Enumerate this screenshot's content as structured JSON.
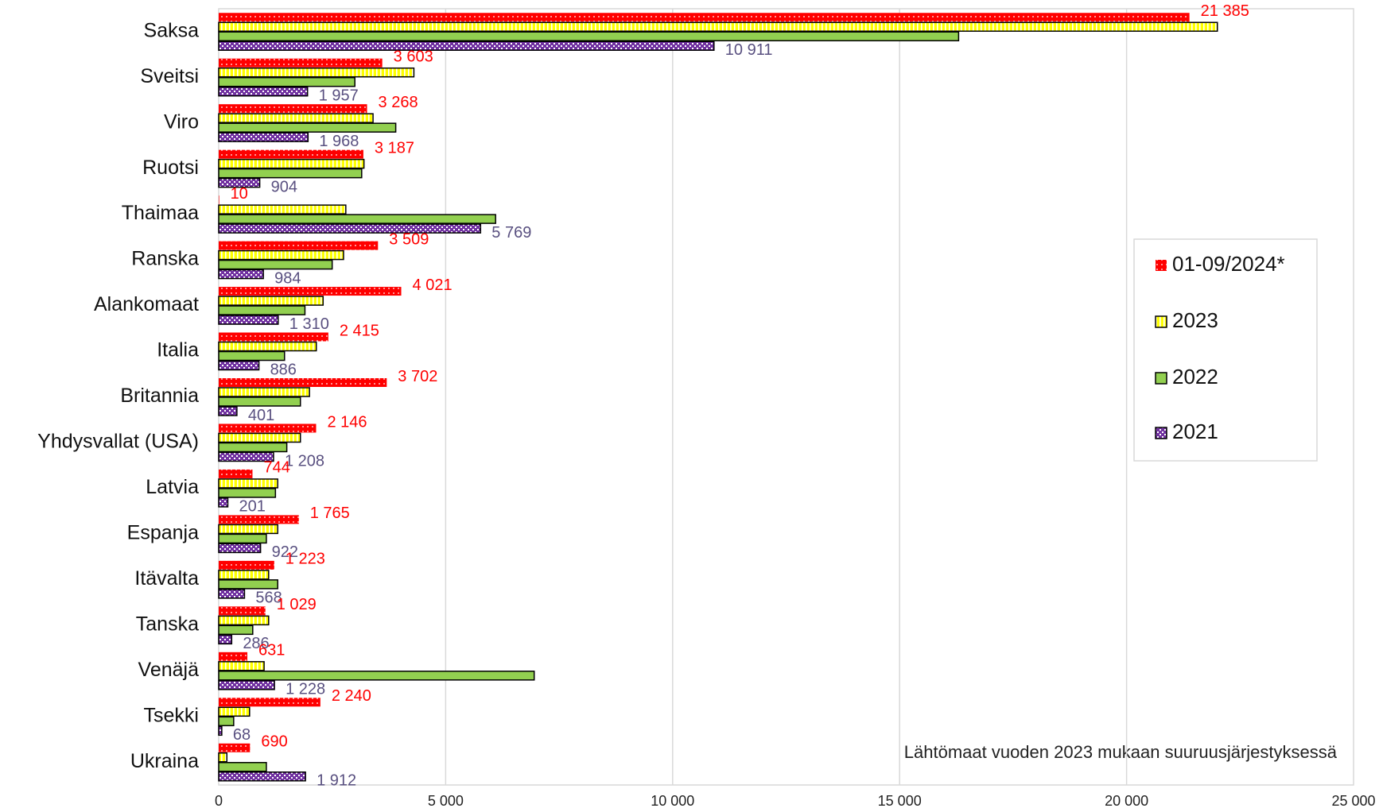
{
  "chart_data": {
    "type": "bar",
    "orientation": "horizontal",
    "categories": [
      "Saksa",
      "Sveitsi",
      "Viro",
      "Ruotsi",
      "Thaimaa",
      "Ranska",
      "Alankomaat",
      "Italia",
      "Britannia",
      "Yhdysvallat (USA)",
      "Latvia",
      "Espanja",
      "Itävalta",
      "Tanska",
      "Venäjä",
      "Tsekki",
      "Ukraina"
    ],
    "series": [
      {
        "name": "01-09/2024*",
        "color": "#ff0000",
        "values": [
          21385,
          3603,
          3268,
          3187,
          10,
          3509,
          4021,
          2415,
          3702,
          2146,
          744,
          1765,
          1223,
          1029,
          631,
          2240,
          690
        ],
        "value_labels": [
          "21 385",
          "3 603",
          "3 268",
          "3 187",
          "10",
          "3 509",
          "4 021",
          "2 415",
          "3 702",
          "2 146",
          "744",
          "1 765",
          "1 223",
          "1 029",
          "631",
          "2 240",
          "690"
        ]
      },
      {
        "name": "2023",
        "color": "#ffff00",
        "values": [
          22000,
          4300,
          3400,
          3200,
          2800,
          2750,
          2300,
          2150,
          2000,
          1800,
          1300,
          1300,
          1100,
          1100,
          1000,
          680,
          180
        ]
      },
      {
        "name": "2022",
        "color": "#92d050",
        "values": [
          16300,
          3000,
          3900,
          3150,
          6100,
          2500,
          1900,
          1450,
          1800,
          1500,
          1250,
          1050,
          1300,
          750,
          6950,
          330,
          1050
        ]
      },
      {
        "name": "2021",
        "color": "#7030a0",
        "values": [
          10911,
          1957,
          1968,
          904,
          5769,
          984,
          1310,
          886,
          401,
          1208,
          201,
          922,
          568,
          286,
          1228,
          68,
          1912
        ],
        "value_labels": [
          "10 911",
          "1 957",
          "1 968",
          "904",
          "5 769",
          "984",
          "1 310",
          "886",
          "401",
          "1 208",
          "201",
          "922",
          "568",
          "286",
          "1 228",
          "68",
          "1 912"
        ]
      }
    ],
    "xlim": [
      0,
      25000
    ],
    "xticks": [
      0,
      {
        "value": 5000,
        "label": "5 000"
      },
      {
        "value": 10000,
        "label": "10 000"
      },
      {
        "value": 15000,
        "label": "15 000"
      },
      {
        "value": 20000,
        "label": "20 000"
      },
      {
        "value": 25000,
        "label": "25 000"
      }
    ],
    "grid": true,
    "legend": "right",
    "annotation": "Lähtömaat vuoden 2023 mukaan suuruusjärjestyksessä"
  }
}
